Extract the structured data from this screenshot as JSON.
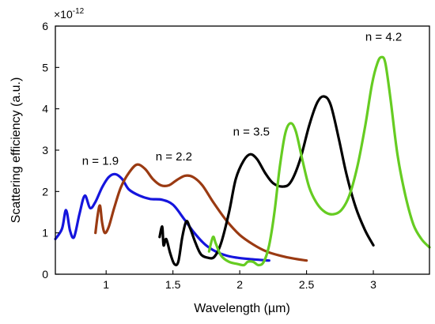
{
  "chart_data": {
    "type": "line",
    "xlabel": "Wavelength (µm)",
    "ylabel": "Scattering  efficiency (a.u.)",
    "y_multiplier": "×10",
    "y_multiplier_exp": "-12",
    "xlim": [
      0.62,
      3.42
    ],
    "ylim": [
      0,
      6
    ],
    "xticks": [
      1,
      1.5,
      2,
      2.5,
      3
    ],
    "xtick_labels": [
      "1",
      "1.5",
      "2",
      "2.5",
      "3"
    ],
    "yticks": [
      0,
      1,
      2,
      3,
      4,
      5,
      6
    ],
    "ytick_labels": [
      "0",
      "1",
      "2",
      "3",
      "4",
      "5",
      "6"
    ],
    "grid": false,
    "series": [
      {
        "color": "#1515dd",
        "points": [
          [
            0.62,
            0.85
          ],
          [
            0.67,
            1.1
          ],
          [
            0.7,
            1.55
          ],
          [
            0.73,
            1.05
          ],
          [
            0.76,
            0.9
          ],
          [
            0.8,
            1.45
          ],
          [
            0.84,
            1.9
          ],
          [
            0.88,
            1.6
          ],
          [
            0.92,
            1.75
          ],
          [
            0.97,
            2.1
          ],
          [
            1.02,
            2.35
          ],
          [
            1.07,
            2.42
          ],
          [
            1.12,
            2.3
          ],
          [
            1.17,
            2.05
          ],
          [
            1.25,
            1.9
          ],
          [
            1.33,
            1.82
          ],
          [
            1.42,
            1.8
          ],
          [
            1.5,
            1.68
          ],
          [
            1.58,
            1.35
          ],
          [
            1.66,
            1.0
          ],
          [
            1.74,
            0.72
          ],
          [
            1.82,
            0.55
          ],
          [
            1.9,
            0.45
          ],
          [
            1.98,
            0.4
          ],
          [
            2.06,
            0.37
          ],
          [
            2.14,
            0.35
          ],
          [
            2.22,
            0.33
          ]
        ]
      },
      {
        "color": "#9a3a12",
        "points": [
          [
            0.92,
            1.0
          ],
          [
            0.94,
            1.5
          ],
          [
            0.955,
            1.65
          ],
          [
            0.97,
            1.25
          ],
          [
            0.99,
            1.0
          ],
          [
            1.02,
            1.15
          ],
          [
            1.06,
            1.6
          ],
          [
            1.11,
            2.1
          ],
          [
            1.17,
            2.45
          ],
          [
            1.23,
            2.65
          ],
          [
            1.29,
            2.55
          ],
          [
            1.35,
            2.3
          ],
          [
            1.41,
            2.15
          ],
          [
            1.47,
            2.15
          ],
          [
            1.53,
            2.28
          ],
          [
            1.59,
            2.38
          ],
          [
            1.65,
            2.35
          ],
          [
            1.72,
            2.15
          ],
          [
            1.8,
            1.75
          ],
          [
            1.9,
            1.3
          ],
          [
            2.0,
            0.95
          ],
          [
            2.1,
            0.72
          ],
          [
            2.2,
            0.55
          ],
          [
            2.3,
            0.45
          ],
          [
            2.4,
            0.38
          ],
          [
            2.5,
            0.33
          ]
        ]
      },
      {
        "color": "#000000",
        "points": [
          [
            1.4,
            0.9
          ],
          [
            1.42,
            1.15
          ],
          [
            1.43,
            0.7
          ],
          [
            1.45,
            0.85
          ],
          [
            1.48,
            0.5
          ],
          [
            1.51,
            0.25
          ],
          [
            1.54,
            0.3
          ],
          [
            1.57,
            0.9
          ],
          [
            1.6,
            1.28
          ],
          [
            1.63,
            1.1
          ],
          [
            1.67,
            0.75
          ],
          [
            1.71,
            0.48
          ],
          [
            1.76,
            0.4
          ],
          [
            1.81,
            0.42
          ],
          [
            1.86,
            0.75
          ],
          [
            1.92,
            1.5
          ],
          [
            1.97,
            2.3
          ],
          [
            2.03,
            2.75
          ],
          [
            2.08,
            2.9
          ],
          [
            2.13,
            2.78
          ],
          [
            2.19,
            2.45
          ],
          [
            2.25,
            2.2
          ],
          [
            2.32,
            2.12
          ],
          [
            2.38,
            2.22
          ],
          [
            2.45,
            2.75
          ],
          [
            2.52,
            3.6
          ],
          [
            2.58,
            4.15
          ],
          [
            2.63,
            4.3
          ],
          [
            2.68,
            4.1
          ],
          [
            2.74,
            3.3
          ],
          [
            2.8,
            2.4
          ],
          [
            2.87,
            1.6
          ],
          [
            2.94,
            1.05
          ],
          [
            3.0,
            0.7
          ]
        ]
      },
      {
        "color": "#66cc22",
        "points": [
          [
            1.77,
            0.55
          ],
          [
            1.8,
            0.9
          ],
          [
            1.82,
            0.75
          ],
          [
            1.86,
            0.45
          ],
          [
            1.92,
            0.3
          ],
          [
            1.98,
            0.25
          ],
          [
            2.03,
            0.22
          ],
          [
            2.06,
            0.3
          ],
          [
            2.1,
            0.3
          ],
          [
            2.14,
            0.22
          ],
          [
            2.18,
            0.3
          ],
          [
            2.22,
            0.7
          ],
          [
            2.26,
            1.5
          ],
          [
            2.3,
            2.6
          ],
          [
            2.34,
            3.4
          ],
          [
            2.38,
            3.65
          ],
          [
            2.42,
            3.45
          ],
          [
            2.47,
            2.75
          ],
          [
            2.52,
            2.1
          ],
          [
            2.58,
            1.7
          ],
          [
            2.64,
            1.5
          ],
          [
            2.7,
            1.45
          ],
          [
            2.76,
            1.55
          ],
          [
            2.82,
            1.9
          ],
          [
            2.88,
            2.6
          ],
          [
            2.94,
            3.6
          ],
          [
            2.99,
            4.6
          ],
          [
            3.03,
            5.1
          ],
          [
            3.06,
            5.25
          ],
          [
            3.09,
            5.1
          ],
          [
            3.13,
            4.2
          ],
          [
            3.18,
            2.9
          ],
          [
            3.24,
            1.9
          ],
          [
            3.3,
            1.2
          ],
          [
            3.36,
            0.85
          ],
          [
            3.42,
            0.65
          ]
        ]
      }
    ],
    "annotations": [
      {
        "text": "n = 1.9",
        "x": 0.82,
        "y": 2.65
      },
      {
        "text": "n = 2.2",
        "x": 1.37,
        "y": 2.75
      },
      {
        "text": "n = 3.5",
        "x": 1.95,
        "y": 3.35
      },
      {
        "text": "n = 4.2",
        "x": 2.94,
        "y": 5.65
      }
    ]
  }
}
